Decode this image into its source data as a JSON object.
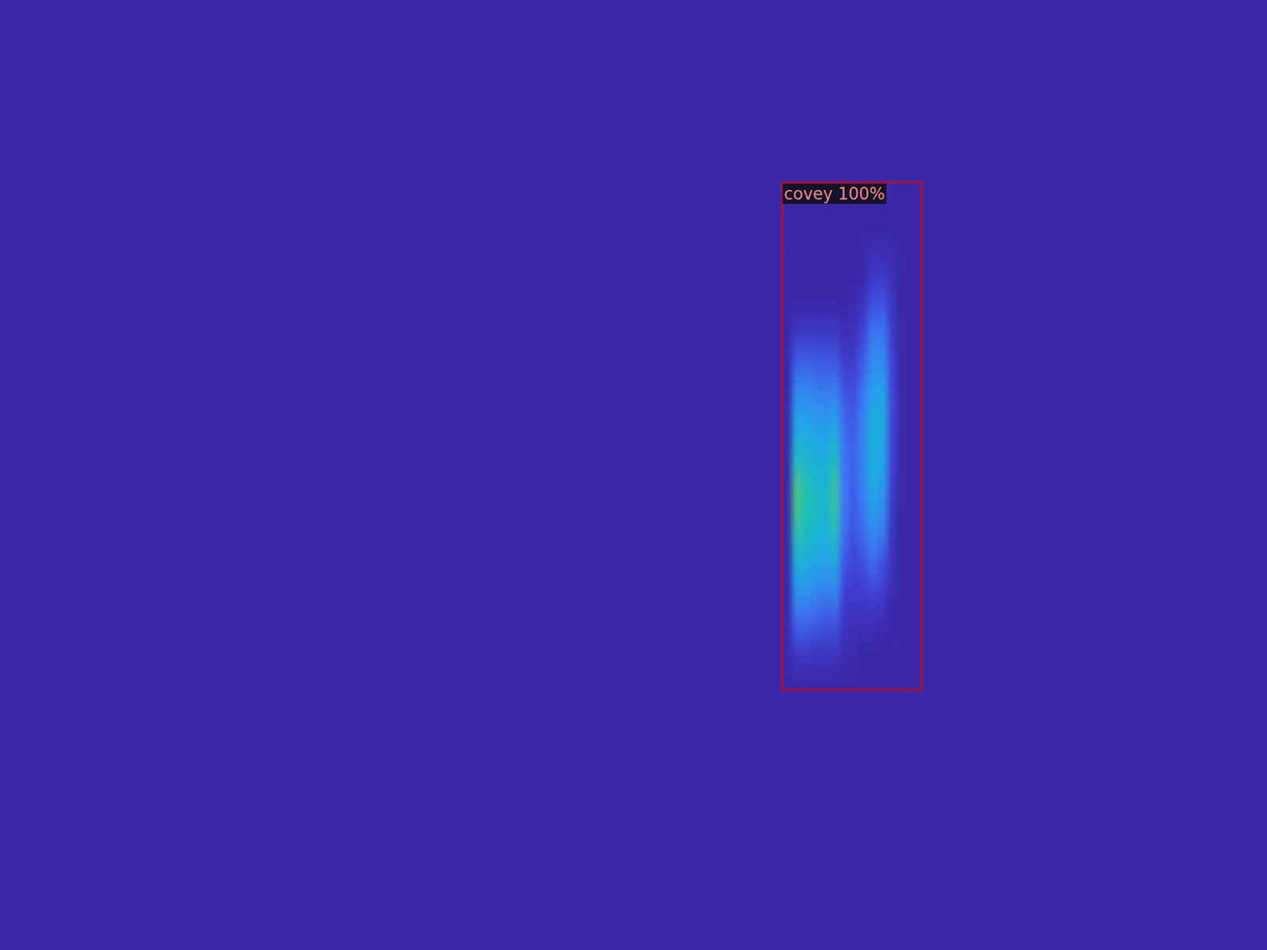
{
  "chart_data": {
    "type": "heatmap",
    "xlim": [
      0,
      2000
    ],
    "ylim": [
      0,
      1500
    ],
    "tick_labels": false,
    "zlim": [
      0,
      1
    ],
    "x_edges": [
      1250,
      1265,
      1280,
      1295,
      1310,
      1325,
      1340,
      1355,
      1370,
      1385,
      1400,
      1415
    ],
    "y_edges": [
      400,
      450,
      500,
      550,
      600,
      650,
      700,
      750,
      800,
      850,
      900,
      950,
      1000,
      1050
    ],
    "cells": [
      [
        0,
        0,
        0,
        0,
        0,
        0,
        0,
        0,
        0.1,
        0.12,
        0.05
      ],
      [
        0,
        0,
        0,
        0,
        0,
        0,
        0.02,
        0.08,
        0.22,
        0.25,
        0.1
      ],
      [
        0.1,
        0.12,
        0.12,
        0.1,
        0.1,
        0.05,
        0.08,
        0.2,
        0.38,
        0.4,
        0.15
      ],
      [
        0.3,
        0.32,
        0.3,
        0.28,
        0.3,
        0.15,
        0.15,
        0.3,
        0.48,
        0.5,
        0.2
      ],
      [
        0.48,
        0.5,
        0.45,
        0.42,
        0.45,
        0.28,
        0.25,
        0.4,
        0.58,
        0.6,
        0.22
      ],
      [
        0.62,
        0.6,
        0.58,
        0.55,
        0.62,
        0.35,
        0.3,
        0.45,
        0.68,
        0.65,
        0.22
      ],
      [
        0.75,
        0.72,
        0.68,
        0.65,
        0.78,
        0.38,
        0.32,
        0.45,
        0.68,
        0.6,
        0.2
      ],
      [
        0.88,
        0.82,
        0.75,
        0.7,
        0.85,
        0.4,
        0.3,
        0.42,
        0.62,
        0.55,
        0.15
      ],
      [
        0.85,
        0.8,
        0.75,
        0.7,
        0.82,
        0.38,
        0.28,
        0.38,
        0.52,
        0.45,
        0.12
      ],
      [
        0.72,
        0.7,
        0.65,
        0.6,
        0.68,
        0.3,
        0.22,
        0.28,
        0.38,
        0.3,
        0.08
      ],
      [
        0.55,
        0.55,
        0.5,
        0.45,
        0.5,
        0.2,
        0.15,
        0.18,
        0.22,
        0.18,
        0.05
      ],
      [
        0.35,
        0.35,
        0.32,
        0.28,
        0.3,
        0.12,
        0.08,
        0.08,
        0.08,
        0.05,
        0
      ],
      [
        0.15,
        0.15,
        0.12,
        0.1,
        0.1,
        0.05,
        0.02,
        0,
        0,
        0,
        0
      ]
    ],
    "annotations": [
      {
        "text": "covey 100%",
        "x1": 1235,
        "x2": 1455,
        "y1": 288,
        "y2": 1089
      }
    ]
  }
}
